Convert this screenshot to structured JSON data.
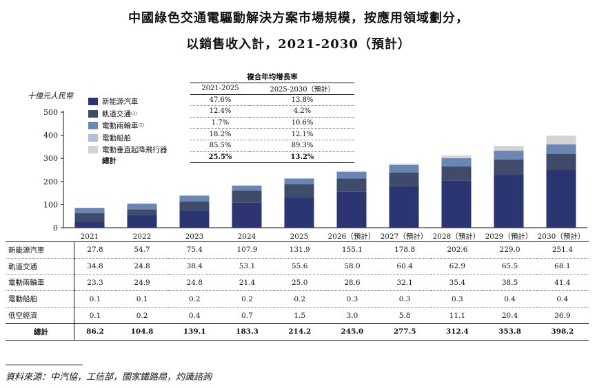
{
  "title_line1": "中國綠色交通電驅動解決方案市場規模，按應用領域劃分，",
  "title_line2": "以銷售收入計，2021-2030（預計）",
  "source": "資料來源：中汽協，工信部，國家鐵路局，灼識諮詢",
  "colors": [
    "#2b3572",
    "#3f4b6a",
    "#6a86b3",
    "#b3c0d9",
    "#d3d3d3"
  ],
  "legend_total": "總計",
  "cagr": {
    "heading": "複合年均增長率",
    "col1": "2021-2025",
    "col2": "2025-2030（預計）",
    "rows": [
      [
        "47.6%",
        "13.8%"
      ],
      [
        "12.4%",
        "4.2%"
      ],
      [
        "1.7%",
        "10.6%"
      ],
      [
        "18.2%",
        "12.1%"
      ],
      [
        "85.5%",
        "89.3%"
      ]
    ],
    "total": [
      "25.5%",
      "13.2%"
    ]
  },
  "table_row_labels": [
    "新能源汽車",
    "軌道交通",
    "電動兩輪車",
    "電動船舶",
    "低空經濟"
  ],
  "table_total_label": "總計",
  "chart_data": {
    "type": "bar",
    "stacked": true,
    "ylabel": "十億元人民幣",
    "ylim": [
      0,
      500
    ],
    "yticks": [
      0,
      100,
      200,
      300,
      400,
      500
    ],
    "categories": [
      "2021",
      "2022",
      "2023",
      "2024",
      "2025",
      "2026（預計）",
      "2027（預計）",
      "2028（預計）",
      "2029（預計）",
      "2030（預計）"
    ],
    "series": [
      {
        "name": "新能源汽車",
        "values": [
          27.8,
          54.7,
          75.4,
          107.9,
          131.9,
          155.1,
          178.8,
          202.6,
          229.0,
          251.4
        ]
      },
      {
        "name": "軌道交通",
        "sup": "(1)",
        "values": [
          34.8,
          24.8,
          38.4,
          53.1,
          55.6,
          58.0,
          60.4,
          62.9,
          65.5,
          68.1
        ]
      },
      {
        "name": "電動兩輪車",
        "sup": "(2)",
        "values": [
          23.3,
          24.9,
          24.8,
          21.4,
          25.0,
          28.6,
          32.1,
          35.4,
          38.5,
          41.4
        ]
      },
      {
        "name": "電動船舶",
        "values": [
          0.1,
          0.1,
          0.2,
          0.2,
          0.2,
          0.3,
          0.3,
          0.3,
          0.4,
          0.4
        ]
      },
      {
        "name": "電動垂直起降飛行器",
        "values": [
          0.1,
          0.2,
          0.4,
          0.7,
          1.5,
          3.0,
          5.8,
          11.1,
          20.4,
          36.9
        ]
      }
    ],
    "totals": [
      86.2,
      104.8,
      139.1,
      183.3,
      214.2,
      245.0,
      277.5,
      312.4,
      353.8,
      398.2
    ],
    "grid": false,
    "legend_position": "top-left"
  }
}
